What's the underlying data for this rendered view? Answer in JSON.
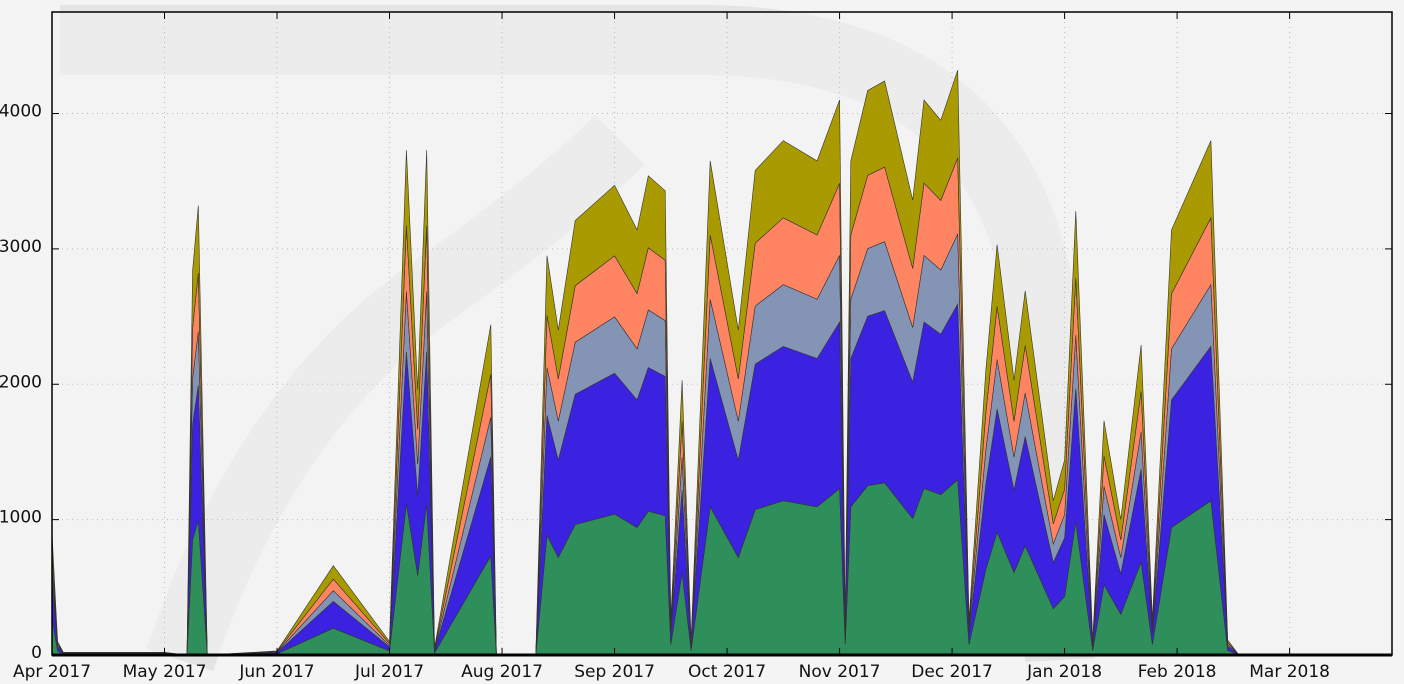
{
  "chart_data": {
    "type": "stacked-area",
    "x": [
      0,
      0.05,
      0.1,
      1.0,
      1.2,
      1.25,
      1.3,
      1.38,
      2.0,
      2.5,
      3.0,
      3.15,
      3.25,
      3.33,
      3.4,
      3.9,
      3.95,
      4.3,
      4.4,
      4.5,
      4.65,
      5.0,
      5.2,
      5.3,
      5.45,
      5.5,
      5.6,
      5.68,
      5.85,
      6.1,
      6.25,
      6.5,
      6.8,
      7.0,
      7.05,
      7.1,
      7.25,
      7.4,
      7.65,
      7.75,
      7.9,
      8.05,
      8.15,
      8.3,
      8.4,
      8.55,
      8.65,
      8.9,
      9.0,
      9.1,
      9.25,
      9.35,
      9.5,
      9.68,
      9.78,
      9.95,
      10.3,
      10.45,
      10.55,
      11.9
    ],
    "series": [
      {
        "color": "#2f8f5a",
        "values": [
          270,
          30,
          6,
          6,
          0,
          852,
          996,
          0,
          9,
          198,
          30,
          1119,
          588,
          1119,
          15,
          732,
          0,
          0,
          885,
          720,
          963,
          1041,
          942,
          1062,
          1029,
          78,
          609,
          33,
          1095,
          720,
          1074,
          1140,
          1095,
          1230,
          78,
          1095,
          1251,
          1272,
          1008,
          1230,
          1185,
          1296,
          78,
          630,
          909,
          609,
          807,
          342,
          432,
          984,
          33,
          519,
          300,
          687,
          78,
          942,
          1140,
          33,
          0,
          0
        ]
      },
      {
        "color": "#3b22e0",
        "values": [
          270,
          30,
          6,
          6,
          0,
          852,
          996,
          0,
          9,
          198,
          30,
          1119,
          588,
          1119,
          15,
          732,
          0,
          0,
          885,
          720,
          963,
          1041,
          942,
          1062,
          1029,
          78,
          609,
          33,
          1095,
          720,
          1074,
          1140,
          1095,
          1230,
          78,
          1095,
          1251,
          1272,
          1008,
          1230,
          1185,
          1296,
          78,
          630,
          909,
          609,
          807,
          342,
          432,
          984,
          33,
          519,
          300,
          687,
          78,
          942,
          1140,
          33,
          0,
          0
        ]
      },
      {
        "color": "#8494b4",
        "values": [
          108,
          12,
          2,
          2,
          0,
          341,
          398,
          0,
          4,
          79,
          12,
          448,
          235,
          448,
          6,
          293,
          0,
          0,
          354,
          288,
          385,
          416,
          377,
          425,
          412,
          31,
          244,
          13,
          438,
          288,
          430,
          456,
          438,
          492,
          31,
          438,
          500,
          509,
          403,
          492,
          474,
          518,
          31,
          252,
          364,
          244,
          323,
          137,
          173,
          394,
          13,
          208,
          120,
          275,
          31,
          377,
          456,
          13,
          0,
          0
        ]
      },
      {
        "color": "#ff8462",
        "values": [
          117,
          13,
          3,
          3,
          0,
          369,
          432,
          0,
          4,
          86,
          13,
          485,
          255,
          485,
          7,
          317,
          0,
          0,
          384,
          312,
          417,
          451,
          408,
          460,
          446,
          34,
          264,
          14,
          475,
          312,
          465,
          494,
          475,
          533,
          34,
          475,
          542,
          551,
          437,
          533,
          514,
          562,
          34,
          273,
          394,
          264,
          350,
          148,
          187,
          426,
          14,
          225,
          130,
          298,
          34,
          408,
          494,
          14,
          0,
          0
        ]
      },
      {
        "color": "#a89a00",
        "values": [
          135,
          15,
          3,
          3,
          0,
          426,
          498,
          0,
          4,
          99,
          15,
          559,
          294,
          559,
          7,
          366,
          0,
          0,
          442,
          360,
          482,
          521,
          471,
          531,
          514,
          39,
          304,
          17,
          547,
          360,
          537,
          570,
          547,
          615,
          39,
          547,
          626,
          636,
          504,
          615,
          592,
          648,
          39,
          315,
          454,
          304,
          403,
          171,
          216,
          492,
          17,
          259,
          150,
          343,
          39,
          471,
          570,
          17,
          0,
          0
        ]
      }
    ],
    "xlim": [
      0,
      11.91
    ],
    "xticks": [
      {
        "value": 0,
        "label": "Apr 2017"
      },
      {
        "value": 1,
        "label": "May 2017"
      },
      {
        "value": 2,
        "label": "Jun 2017"
      },
      {
        "value": 3,
        "label": "Jul 2017"
      },
      {
        "value": 4,
        "label": "Aug 2017"
      },
      {
        "value": 5,
        "label": "Sep 2017"
      },
      {
        "value": 6,
        "label": "Oct 2017"
      },
      {
        "value": 7,
        "label": "Nov 2017"
      },
      {
        "value": 8,
        "label": "Dec 2017"
      },
      {
        "value": 9,
        "label": "Jan 2018"
      },
      {
        "value": 10,
        "label": "Feb 2018"
      },
      {
        "value": 11,
        "label": "Mar 2018"
      }
    ],
    "ylim": [
      0,
      4750
    ],
    "yticks": [
      0,
      1000,
      2000,
      3000,
      4000
    ],
    "grid": true
  }
}
